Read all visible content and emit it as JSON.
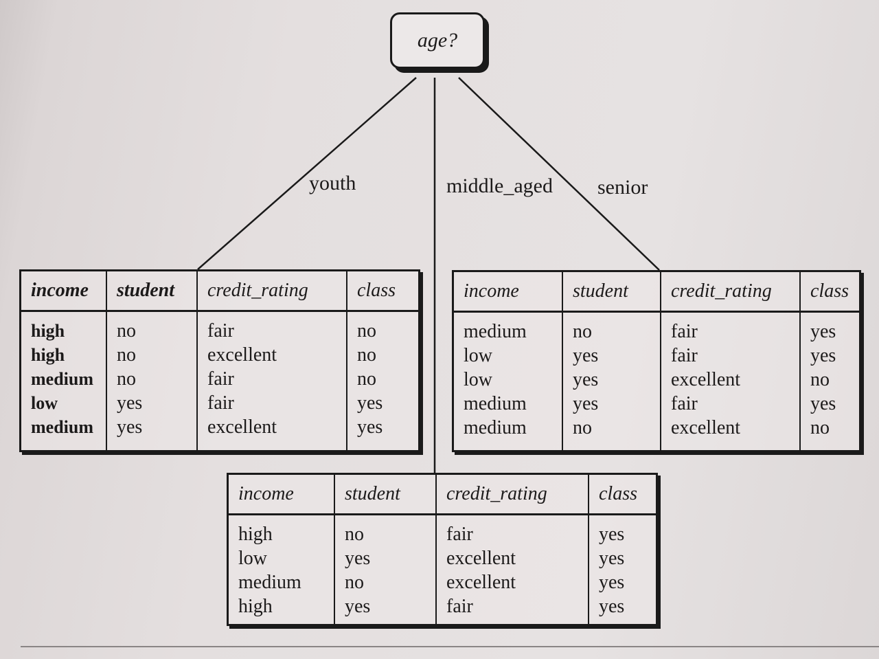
{
  "root": {
    "label": "age?"
  },
  "branches": [
    {
      "label": "youth"
    },
    {
      "label": "middle_aged"
    },
    {
      "label": "senior"
    }
  ],
  "tables": {
    "youth": {
      "headers": [
        "income",
        "student",
        "credit_rating",
        "class"
      ],
      "columns": [
        [
          "high",
          "high",
          "medium",
          "low",
          "medium"
        ],
        [
          "no",
          "no",
          "no",
          "yes",
          "yes"
        ],
        [
          "fair",
          "excellent",
          "fair",
          "fair",
          "excellent"
        ],
        [
          "no",
          "no",
          "no",
          "yes",
          "yes"
        ]
      ]
    },
    "senior": {
      "headers": [
        "income",
        "student",
        "credit_rating",
        "class"
      ],
      "columns": [
        [
          "medium",
          "low",
          "low",
          "medium",
          "medium"
        ],
        [
          "no",
          "yes",
          "yes",
          "yes",
          "no"
        ],
        [
          "fair",
          "fair",
          "excellent",
          "fair",
          "excellent"
        ],
        [
          "yes",
          "yes",
          "no",
          "yes",
          "no"
        ]
      ]
    },
    "middle_aged": {
      "headers": [
        "income",
        "student",
        "credit_rating",
        "class"
      ],
      "columns": [
        [
          "high",
          "low",
          "medium",
          "high"
        ],
        [
          "no",
          "yes",
          "no",
          "yes"
        ],
        [
          "fair",
          "excellent",
          "excellent",
          "fair"
        ],
        [
          "yes",
          "yes",
          "yes",
          "yes"
        ]
      ]
    }
  }
}
